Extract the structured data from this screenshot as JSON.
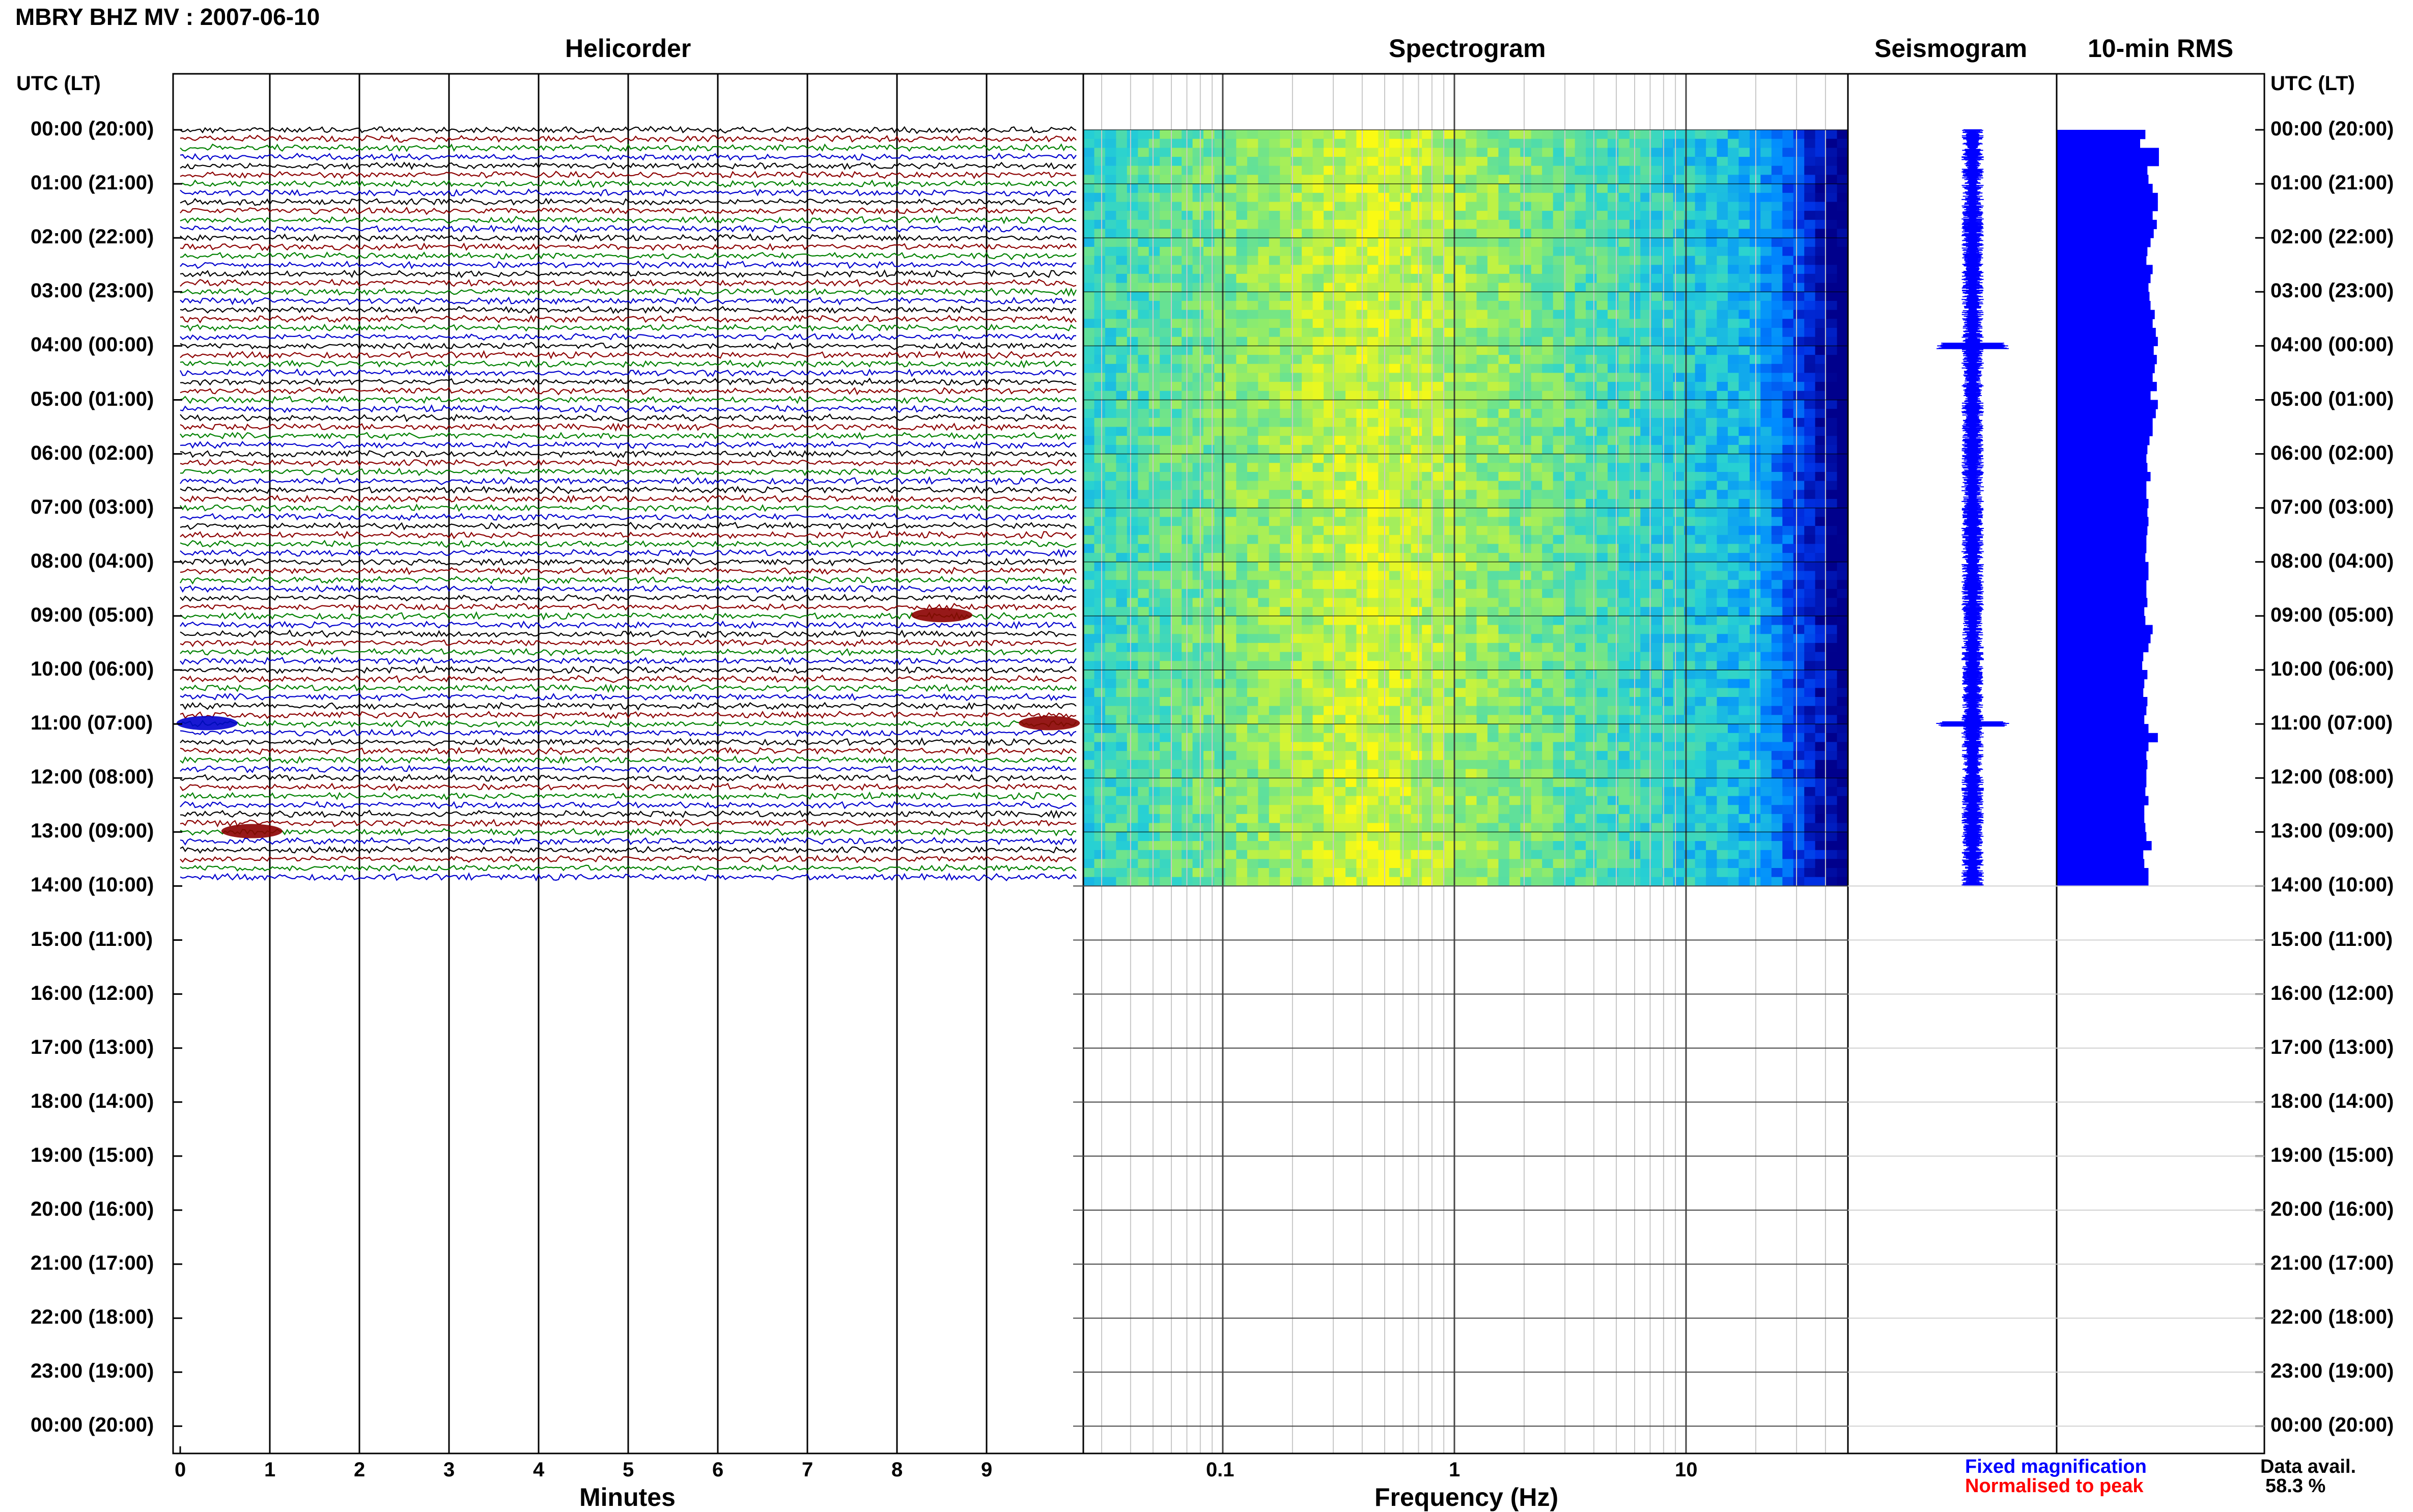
{
  "header": {
    "title": "MBRY BHZ MV : 2007-06-10",
    "utc_left": "UTC (LT)",
    "utc_right": "UTC (LT)"
  },
  "panels": {
    "helicorder": "Helicorder",
    "spectrogram": "Spectrogram",
    "seismogram": "Seismogram",
    "rms": "10-min RMS"
  },
  "time_labels": [
    "00:00 (20:00)",
    "01:00 (21:00)",
    "02:00 (22:00)",
    "03:00 (23:00)",
    "04:00 (00:00)",
    "05:00 (01:00)",
    "06:00 (02:00)",
    "07:00 (03:00)",
    "08:00 (04:00)",
    "09:00 (05:00)",
    "10:00 (06:00)",
    "11:00 (07:00)",
    "12:00 (08:00)",
    "13:00 (09:00)",
    "14:00 (10:00)",
    "15:00 (11:00)",
    "16:00 (12:00)",
    "17:00 (13:00)",
    "18:00 (14:00)",
    "19:00 (15:00)",
    "20:00 (16:00)",
    "21:00 (17:00)",
    "22:00 (18:00)",
    "23:00 (19:00)",
    "00:00 (20:00)"
  ],
  "footer": {
    "minutes_label": "Minutes",
    "frequency_label": "Frequency (Hz)",
    "legend_fixed": "Fixed magnification",
    "legend_normalised": "Normalised to peak",
    "data_avail_label": "Data avail.",
    "data_avail_value": "58.3 %"
  },
  "colors": {
    "trace_cycle": [
      "#000000",
      "#8b0000",
      "#008000",
      "#0000cd"
    ],
    "legend_fixed": "#0000ff",
    "legend_normalised": "#ff0000",
    "rms_fill": "#0000ff"
  },
  "chart_data": [
    {
      "type": "helicorder",
      "panel": "Helicorder",
      "xlabel": "Minutes",
      "x_ticks": [
        "0",
        "1",
        "2",
        "3",
        "4",
        "5",
        "6",
        "7",
        "8",
        "9"
      ],
      "xlim": [
        0,
        10
      ],
      "trace_minutes": 10,
      "data_hours": 14,
      "traces_per_hour": 6,
      "trace_colors": [
        "black",
        "darkred",
        "green",
        "blue"
      ],
      "events": [
        {
          "hour": 9,
          "minute": 8.5,
          "color": "darkred"
        },
        {
          "hour": 11,
          "minute": 0.3,
          "color": "blue"
        },
        {
          "hour": 11,
          "minute": 9.7,
          "color": "darkred"
        },
        {
          "hour": 13,
          "minute": 0.8,
          "color": "darkred"
        }
      ]
    },
    {
      "type": "heatmap",
      "panel": "Spectrogram",
      "xlabel": "Frequency (Hz)",
      "x_scale": "log",
      "x_ticks": [
        "0.1",
        "1",
        "10"
      ],
      "xlim": [
        0.025,
        50
      ],
      "peak_band_hz": [
        0.2,
        0.6
      ],
      "data_hours": 14
    },
    {
      "type": "line",
      "panel": "Seismogram",
      "data_hours": 14,
      "events_hours": [
        4.0,
        11.0
      ]
    },
    {
      "type": "bar",
      "panel": "10-min RMS",
      "orientation": "horizontal",
      "data_hours": 14,
      "relative_values": [
        0.85,
        0.8,
        0.98,
        0.98,
        0.87,
        0.88,
        0.92,
        0.97,
        0.97,
        0.92,
        0.96,
        0.93,
        0.9,
        0.87,
        0.86,
        0.92,
        0.9,
        0.88,
        0.89,
        0.9,
        0.94,
        0.92,
        0.95,
        0.97,
        0.93,
        0.96,
        0.94,
        0.92,
        0.96,
        0.9,
        0.97,
        0.95,
        0.92,
        0.92,
        0.89,
        0.87,
        0.86,
        0.87,
        0.9,
        0.86,
        0.86,
        0.88,
        0.87,
        0.88,
        0.87,
        0.86,
        0.86,
        0.85,
        0.88,
        0.88,
        0.86,
        0.86,
        0.87,
        0.84,
        0.85,
        0.92,
        0.9,
        0.88,
        0.83,
        0.82,
        0.87,
        0.84,
        0.83,
        0.87,
        0.86,
        0.84,
        0.88,
        0.97,
        0.88,
        0.86,
        0.87,
        0.86,
        0.86,
        0.85,
        0.88,
        0.84,
        0.84,
        0.85,
        0.86,
        0.91,
        0.83,
        0.84,
        0.88,
        0.88
      ]
    }
  ]
}
